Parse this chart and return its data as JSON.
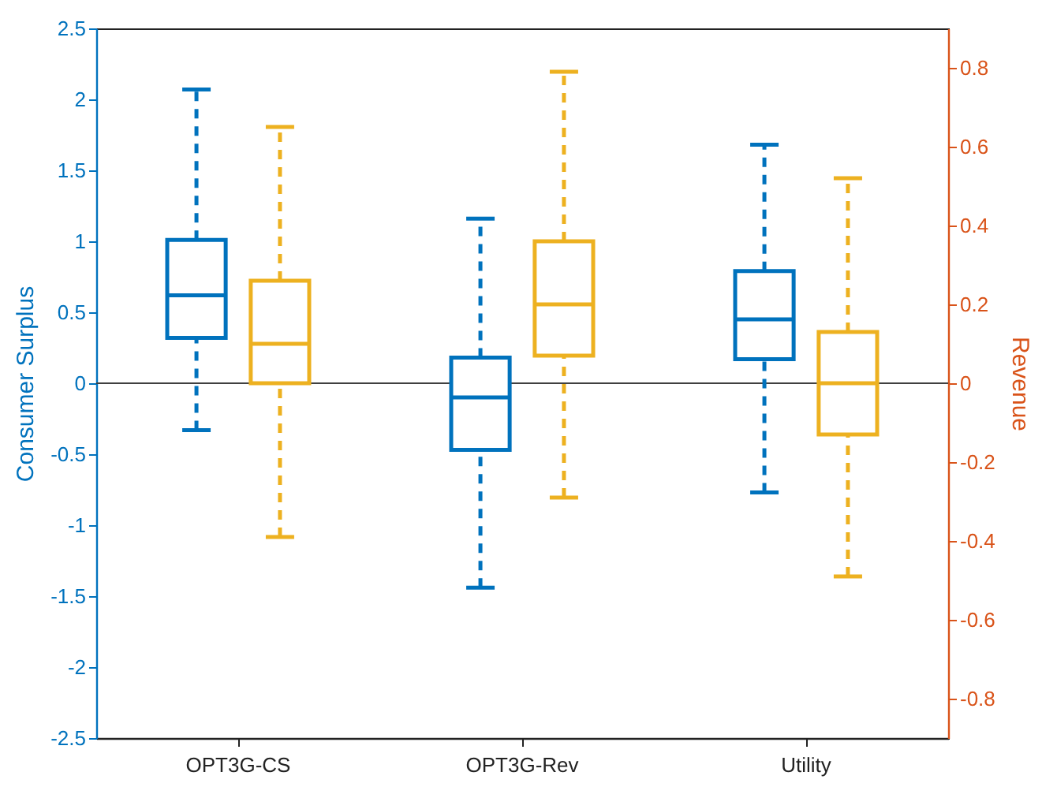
{
  "chart_data": {
    "type": "box",
    "ylabel": "Consumer Surplus",
    "y2label": "Revenue",
    "categories": [
      "OPT3G-CS",
      "OPT3G-Rev",
      "Utility"
    ],
    "ylim": [
      -2.5,
      2.5
    ],
    "yticks": [
      -2.5,
      -2,
      -1.5,
      -1,
      -0.5,
      0,
      0.5,
      1,
      1.5,
      2,
      2.5
    ],
    "y2lim": [
      -0.9,
      0.9
    ],
    "y2ticks": [
      -0.8,
      -0.6,
      -0.4,
      -0.2,
      0,
      0.2,
      0.4,
      0.6,
      0.8
    ],
    "ref_lines": [
      {
        "axis": "y",
        "value": 0,
        "color": "#404040"
      }
    ],
    "line_style": "dashed",
    "grid": false,
    "series": [
      {
        "color": "#0072bd",
        "boxes": [
          {
            "low": -0.33,
            "q1": 0.32,
            "median": 0.62,
            "q3": 1.01,
            "high": 2.07
          },
          {
            "low": -1.44,
            "q1": -0.47,
            "median": -0.1,
            "q3": 0.18,
            "high": 1.16
          },
          {
            "low": -0.77,
            "q1": 0.17,
            "median": 0.45,
            "q3": 0.79,
            "high": 1.68
          }
        ]
      },
      {
        "color": "#edb120",
        "axis": "y2",
        "boxes": [
          {
            "low": -0.39,
            "q1": 0,
            "median": 0.1,
            "q3": 0.26,
            "high": 0.65
          },
          {
            "low": -0.29,
            "q1": 0.07,
            "median": 0.2,
            "q3": 0.36,
            "high": 0.79
          },
          {
            "low": -0.49,
            "q1": -0.13,
            "median": 0,
            "q3": 0.13,
            "high": 0.52
          }
        ]
      }
    ]
  }
}
